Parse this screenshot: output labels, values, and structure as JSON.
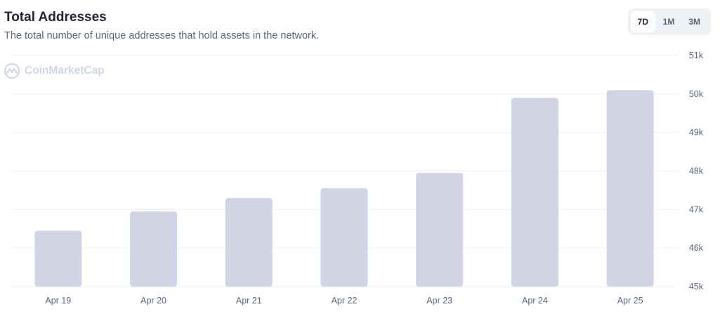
{
  "header": {
    "title": "Total Addresses",
    "subtitle": "The total number of unique addresses that hold assets in the network."
  },
  "range_buttons": [
    {
      "label": "7D",
      "active": true
    },
    {
      "label": "1M",
      "active": false
    },
    {
      "label": "3M",
      "active": false
    }
  ],
  "watermark": "CoinMarketCap",
  "colors": {
    "bar": "#d1d4e4",
    "grid": "#eff2f5",
    "axis_text": "#58667e"
  },
  "chart_data": {
    "type": "bar",
    "categories": [
      "Apr 19",
      "Apr 20",
      "Apr 21",
      "Apr 22",
      "Apr 23",
      "Apr 24",
      "Apr 25"
    ],
    "values": [
      46450,
      46950,
      47300,
      47550,
      47950,
      49900,
      50100
    ],
    "ylim": [
      45000,
      51000
    ],
    "yticks": [
      45000,
      46000,
      47000,
      48000,
      49000,
      50000,
      51000
    ],
    "ytick_labels": [
      "45k",
      "46k",
      "47k",
      "48k",
      "49k",
      "50k",
      "51k"
    ],
    "y_axis_side": "right",
    "grid": true
  }
}
